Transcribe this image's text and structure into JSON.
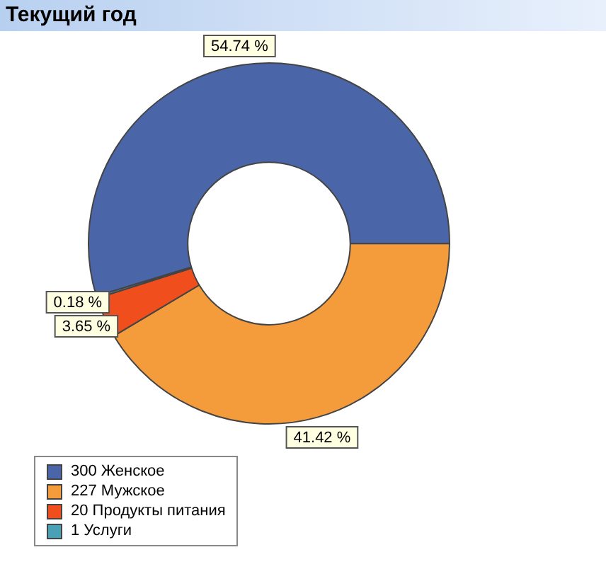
{
  "chart_data": {
    "type": "donut",
    "title": "Текущий год",
    "categories": [
      "300 Женское",
      "227 Мужское",
      "20 Продукты питания",
      "1 Услуги"
    ],
    "values": [
      54.74,
      41.42,
      3.65,
      0.18
    ],
    "colors": [
      "#4a66a8",
      "#f49c3c",
      "#f04e1c",
      "#4aa0b4"
    ],
    "value_labels": [
      "54.74 %",
      "41.42 %",
      "3.65 %",
      "0.18 %"
    ],
    "legend": "bottom left"
  }
}
